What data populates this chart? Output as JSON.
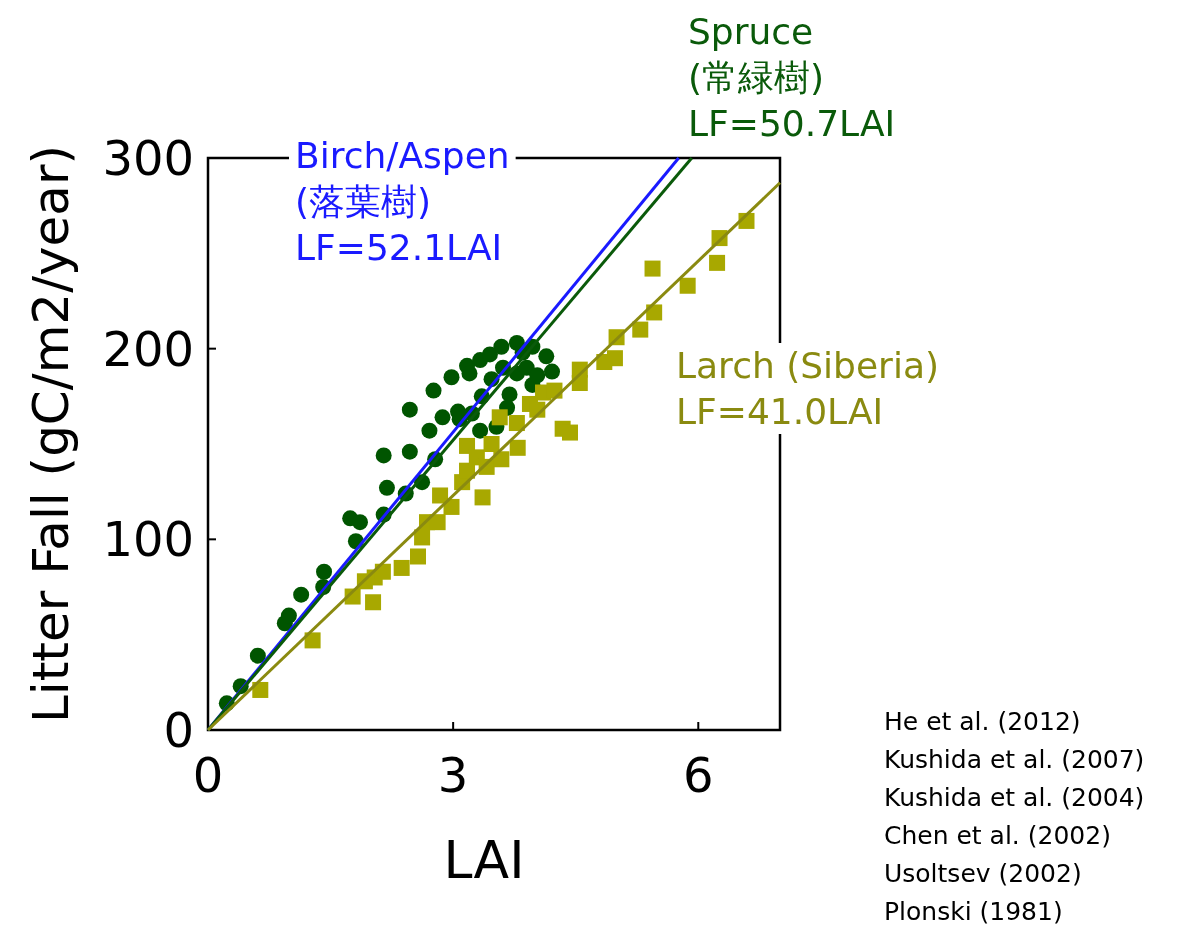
{
  "chart_data": {
    "type": "scatter",
    "xlabel": "LAI",
    "ylabel": "Litter Fall (gC/m2/year)",
    "xlim": [
      0,
      7
    ],
    "ylim": [
      0,
      300
    ],
    "xticks": [
      0,
      3,
      6
    ],
    "yticks": [
      0,
      100,
      200,
      300
    ],
    "grid": false,
    "series": [
      {
        "marker": "circle",
        "color": "#005500",
        "x": [
          0.23,
          0.4,
          0.61,
          0.94,
          0.99,
          1.14,
          1.41,
          1.42,
          1.74,
          1.86,
          1.81,
          2.15,
          2.19,
          2.15,
          2.42,
          2.47,
          2.47,
          2.62,
          2.71,
          2.76,
          2.78,
          2.87,
          2.98,
          3.17,
          3.2,
          3.33,
          3.45,
          3.59,
          3.78,
          3.97,
          4.14,
          4.21,
          3.06,
          3.08,
          3.23,
          3.33,
          3.35,
          3.47,
          3.61,
          3.69,
          3.78,
          3.9,
          3.97,
          3.66,
          3.53,
          4.03,
          3.85
        ],
        "values": [
          14,
          23,
          39,
          56,
          60,
          71,
          75,
          83,
          111,
          109,
          99,
          113,
          127,
          144,
          124,
          146,
          168,
          130,
          157,
          178,
          142,
          164,
          185,
          191,
          187,
          194,
          197,
          201,
          203,
          201,
          196,
          188,
          167,
          163,
          166,
          157,
          175,
          184,
          190,
          176,
          187,
          190,
          181,
          169,
          159,
          186,
          198
        ]
      },
      {
        "marker": "square",
        "color": "#a8a800",
        "x": [
          0.64,
          1.28,
          1.77,
          2.02,
          1.92,
          2.04,
          2.14,
          2.37,
          2.57,
          2.62,
          2.68,
          2.81,
          2.84,
          2.98,
          3.11,
          3.36,
          3.17,
          3.17,
          3.29,
          3.41,
          3.47,
          3.59,
          3.57,
          3.78,
          3.79,
          3.94,
          4.03,
          4.1,
          4.24,
          4.34,
          4.43,
          4.55,
          4.55,
          4.85,
          4.98,
          5.0,
          5.29,
          5.46,
          5.44,
          5.87,
          6.23,
          6.26,
          6.59
        ],
        "values": [
          21,
          47,
          70,
          67,
          78,
          80,
          83,
          85,
          91,
          101,
          109,
          109,
          123,
          117,
          130,
          122,
          136,
          149,
          143,
          138,
          150,
          142,
          164,
          161,
          148,
          171,
          168,
          177,
          178,
          158,
          156,
          182,
          189,
          193,
          195,
          206,
          210,
          219,
          242,
          233,
          245,
          258,
          267
        ]
      },
      {
        "type": "line",
        "marker": "none",
        "color": "#1a1aff",
        "name": "Birch/Aspen\n(落葉樹)\nLF=52.1LAI",
        "x": [
          0,
          5.76
        ],
        "values": [
          0,
          300
        ]
      },
      {
        "type": "line",
        "marker": "none",
        "color": "#0a5a0a",
        "name": "Spruce\n(常緑樹)\nLF=50.7LAI",
        "x": [
          0,
          5.92
        ],
        "values": [
          0,
          300
        ]
      },
      {
        "type": "line",
        "marker": "none",
        "color": "#8a8a10",
        "name": "Larch (Siberia)\nLF=41.0LAI",
        "x": [
          0,
          7
        ],
        "values": [
          0,
          287
        ]
      }
    ],
    "annotations": [
      "He et al. (2012)",
      "Kushida et al. (2007)",
      "Kushida et al. (2004)",
      "Chen et al. (2002)",
      "Usoltsev (2002)",
      "Plonski (1981)"
    ]
  }
}
